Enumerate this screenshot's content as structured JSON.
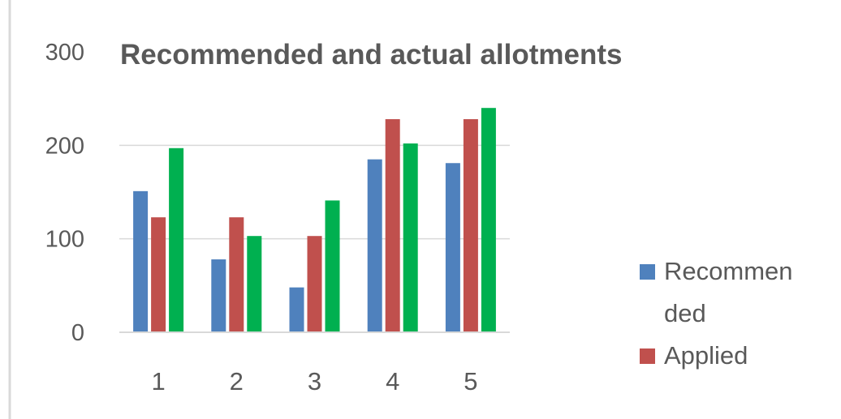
{
  "chart_data": {
    "type": "bar",
    "title": "Recommended and actual allotments",
    "xlabel": "",
    "ylabel": "",
    "categories": [
      "1",
      "2",
      "3",
      "4",
      "5"
    ],
    "ylim": [
      0,
      300
    ],
    "yticks": [
      0,
      100,
      200,
      300
    ],
    "grid": true,
    "legend_position": "right",
    "series": [
      {
        "name": "Recommended",
        "color": "#4f81bd",
        "values": [
          151,
          78,
          48,
          185,
          181
        ]
      },
      {
        "name": "Applied",
        "color": "#c0504d",
        "values": [
          123,
          123,
          103,
          228,
          228
        ]
      },
      {
        "color": "#00b050",
        "values": [
          197,
          103,
          141,
          202,
          240
        ]
      }
    ]
  },
  "legend": {
    "items": [
      {
        "label_lines": [
          "Recommen",
          "ded"
        ],
        "color": "#4f81bd"
      },
      {
        "label_lines": [
          "Applied"
        ],
        "color": "#c0504d"
      }
    ]
  }
}
